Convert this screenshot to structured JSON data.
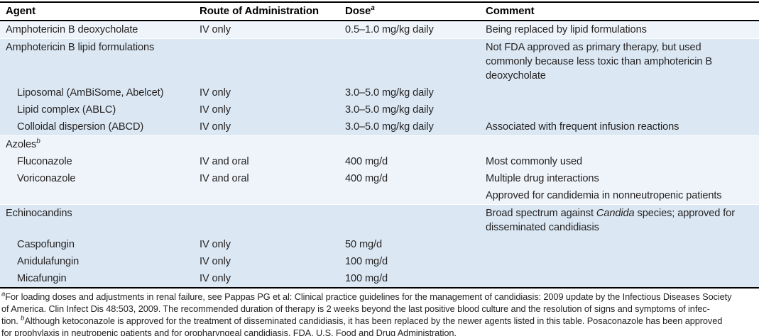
{
  "table": {
    "headers": [
      {
        "label": "Agent"
      },
      {
        "label": "Route of Administration"
      },
      {
        "label": "Dose",
        "sup": "a"
      },
      {
        "label": "Comment"
      }
    ],
    "rows": [
      {
        "agent": "Amphotericin B deoxycholate",
        "indent": false,
        "route": "IV only",
        "dose": "0.5–1.0 mg/kg daily",
        "comment": [
          {
            "t": "Being replaced by lipid formulations"
          }
        ],
        "band": "light"
      },
      {
        "agent": "Amphotericin B lipid formulations",
        "indent": false,
        "route": "",
        "dose": "",
        "comment": [
          {
            "t": "Not FDA approved as primary therapy, but used\ncommonly because less toxic than amphotericin B\ndeoxycholate"
          }
        ],
        "band": "dark"
      },
      {
        "agent": "Liposomal (AmBiSome, Abelcet)",
        "indent": true,
        "route": "IV only",
        "dose": "3.0–5.0 mg/kg daily",
        "comment": [],
        "band": "dark"
      },
      {
        "agent": "Lipid complex (ABLC)",
        "indent": true,
        "route": "IV only",
        "dose": "3.0–5.0 mg/kg daily",
        "comment": [],
        "band": "dark"
      },
      {
        "agent": "Colloidal dispersion (ABCD)",
        "indent": true,
        "route": "IV only",
        "dose": "3.0–5.0 mg/kg daily",
        "comment": [
          {
            "t": "Associated with frequent infusion reactions"
          }
        ],
        "band": "dark"
      },
      {
        "agent": "Azoles",
        "agent_sup": "b",
        "indent": false,
        "route": "",
        "dose": "",
        "comment": [],
        "band": "light"
      },
      {
        "agent": "Fluconazole",
        "indent": true,
        "route": "IV and oral",
        "dose": "400 mg/d",
        "comment": [
          {
            "t": "Most commonly used"
          }
        ],
        "band": "light"
      },
      {
        "agent": "Voriconazole",
        "indent": true,
        "route": "IV and oral",
        "dose": "400 mg/d",
        "comment": [
          {
            "t": "Multiple drug interactions"
          }
        ],
        "band": "light"
      },
      {
        "agent": "",
        "indent": false,
        "route": "",
        "dose": "",
        "comment": [
          {
            "t": "Approved for candidemia in nonneutropenic patients"
          }
        ],
        "band": "light"
      },
      {
        "agent": "Echinocandins",
        "indent": false,
        "route": "",
        "dose": "",
        "comment": [
          {
            "t": "Broad spectrum against "
          },
          {
            "t": "Candida",
            "i": true
          },
          {
            "t": " species; approved for\ndisseminated candidiasis"
          }
        ],
        "band": "dark"
      },
      {
        "agent": "Caspofungin",
        "indent": true,
        "route": "IV only",
        "dose": "50 mg/d",
        "comment": [],
        "band": "dark"
      },
      {
        "agent": "Anidulafungin",
        "indent": true,
        "route": "IV only",
        "dose": "100 mg/d",
        "comment": [],
        "band": "dark"
      },
      {
        "agent": "Micafungin",
        "indent": true,
        "route": "IV only",
        "dose": "100 mg/d",
        "comment": [],
        "band": "dark"
      }
    ],
    "colors": {
      "band_light": "#eef4fa",
      "band_dark": "#dbe8f4",
      "rule": "#000000",
      "text": "#262323"
    }
  },
  "footnote": {
    "lines": [
      [
        {
          "sup": "a"
        },
        {
          "t": "For loading doses and adjustments in renal failure, see Pappas PG et al: Clinical practice guidelines for the management of candidiasis: 2009 update by the Infectious Diseases Society"
        }
      ],
      [
        {
          "t": "of America. Clin Infect Dis 48:503, 2009. The recommended duration of therapy is 2 weeks beyond the last positive blood culture and the resolution of signs and symptoms of infec-"
        }
      ],
      [
        {
          "t": "tion. "
        },
        {
          "sup": "b"
        },
        {
          "t": "Although ketoconazole is approved for the treatment of disseminated candidiasis, it has been replaced by the newer agents listed in this table. Posaconazole has been approved"
        }
      ],
      [
        {
          "t": "for prophylaxis in neutropenic patients and for oropharyngeal candidiasis. FDA, U.S. Food and Drug Administration."
        }
      ]
    ]
  }
}
